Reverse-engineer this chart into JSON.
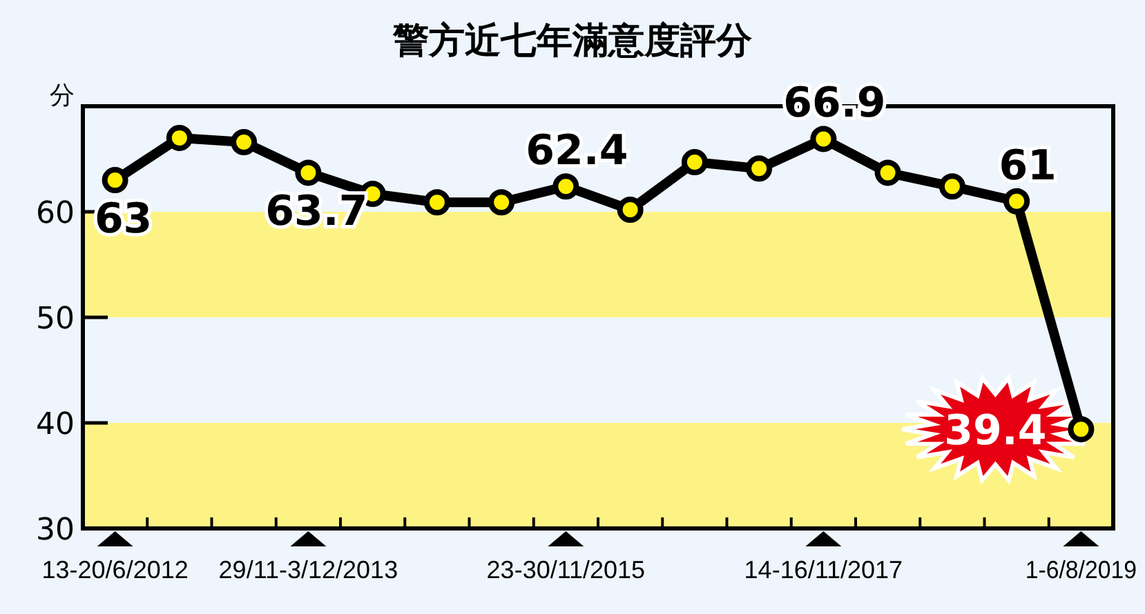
{
  "chart_data": {
    "type": "line",
    "title": "警方近七年滿意度評分",
    "ylabel": "分",
    "categories": [
      "13-20/6/2012",
      null,
      null,
      "29/11-3/12/2013",
      null,
      null,
      null,
      "23-30/11/2015",
      null,
      null,
      null,
      "14-16/11/2017",
      null,
      null,
      null,
      "1-6/8/2019"
    ],
    "series": [
      {
        "color": "#000000",
        "values": [
          63,
          67.0,
          66.6,
          63.7,
          61.7,
          60.9,
          60.9,
          62.4,
          60.2,
          64.7,
          64.1,
          66.9,
          63.7,
          62.4,
          61,
          39.4
        ],
        "value_labels": [
          "63",
          null,
          null,
          "63.7",
          null,
          null,
          null,
          "62.4",
          null,
          null,
          null,
          "66.9",
          null,
          null,
          "61",
          "39.4"
        ]
      }
    ],
    "ylim": [
      30,
      70
    ],
    "yticks": [
      30,
      40,
      50,
      60
    ],
    "bands": [
      {
        "axis": "y",
        "from": 30,
        "to": 40,
        "color": "#fdf385"
      },
      {
        "axis": "y",
        "from": 50,
        "to": 60,
        "color": "#fdf385"
      }
    ],
    "marker": "circle",
    "grid": false
  }
}
